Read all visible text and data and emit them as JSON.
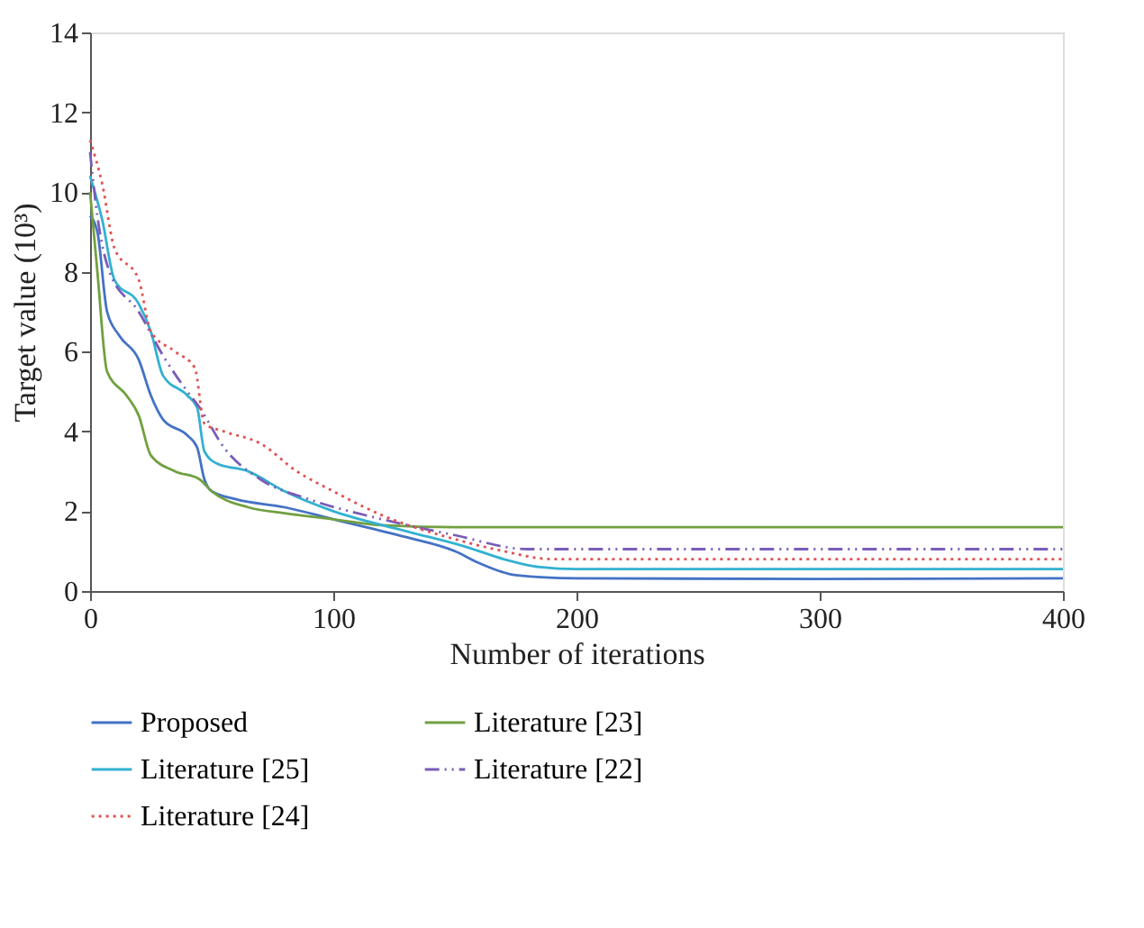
{
  "chart_data": {
    "type": "line",
    "xlabel": "Number of iterations",
    "ylabel": "Target value (10³)",
    "xlim": [
      0,
      400
    ],
    "ylim": [
      0,
      14
    ],
    "xticks": [
      0,
      100,
      200,
      300,
      400
    ],
    "yticks": [
      0,
      2,
      4,
      6,
      8,
      10,
      12,
      14
    ],
    "grid": false,
    "legend": "bottom",
    "marker": "none",
    "series": [
      {
        "name": "Proposed",
        "color": "#4472c4",
        "line_style": "solid",
        "x": [
          0,
          3,
          7,
          12,
          20,
          25,
          30,
          40,
          44,
          47,
          50,
          60,
          80,
          100,
          130,
          150,
          160,
          175,
          200,
          300,
          400
        ],
        "values": [
          9.4,
          9.0,
          7.0,
          6.4,
          5.8,
          4.9,
          4.3,
          3.9,
          3.6,
          2.8,
          2.5,
          2.3,
          2.1,
          1.8,
          1.35,
          1.0,
          0.7,
          0.4,
          0.32,
          0.3,
          0.32
        ]
      },
      {
        "name": "Literature [23]",
        "color": "#70a040",
        "line_style": "solid",
        "x": [
          0,
          3,
          7,
          15,
          20,
          25,
          35,
          45,
          50,
          65,
          80,
          100,
          120,
          150,
          400
        ],
        "values": [
          10.0,
          8.0,
          5.5,
          4.9,
          4.4,
          3.4,
          3.0,
          2.8,
          2.5,
          2.1,
          1.95,
          1.8,
          1.65,
          1.6,
          1.6
        ]
      },
      {
        "name": "Literature [25]",
        "color": "#33b1d1",
        "line_style": "solid",
        "x": [
          0,
          5,
          10,
          20,
          25,
          30,
          40,
          44,
          47,
          52,
          65,
          80,
          100,
          130,
          155,
          170,
          185,
          200,
          400
        ],
        "values": [
          10.4,
          9.3,
          7.8,
          7.2,
          6.5,
          5.4,
          4.9,
          4.6,
          3.5,
          3.2,
          3.0,
          2.5,
          2.0,
          1.5,
          1.1,
          0.8,
          0.6,
          0.55,
          0.55
        ]
      },
      {
        "name": "Literature [22]",
        "color": "#7a5cb8",
        "line_style": "dashed",
        "x": [
          0,
          3,
          8,
          20,
          30,
          40,
          45,
          55,
          70,
          90,
          120,
          150,
          180,
          400
        ],
        "values": [
          11.0,
          9.4,
          8.0,
          7.0,
          5.9,
          5.0,
          4.6,
          3.6,
          2.8,
          2.3,
          1.8,
          1.4,
          1.05,
          1.05
        ]
      },
      {
        "name": "Literature [24]",
        "color": "#e05252",
        "line_style": "dotted",
        "x": [
          0,
          5,
          10,
          20,
          25,
          35,
          43,
          47,
          55,
          70,
          85,
          100,
          120,
          150,
          170,
          190,
          400
        ],
        "values": [
          11.3,
          10.2,
          8.6,
          7.8,
          6.5,
          6.0,
          5.6,
          4.2,
          4.0,
          3.7,
          3.0,
          2.5,
          1.9,
          1.3,
          1.0,
          0.8,
          0.8
        ]
      }
    ]
  }
}
